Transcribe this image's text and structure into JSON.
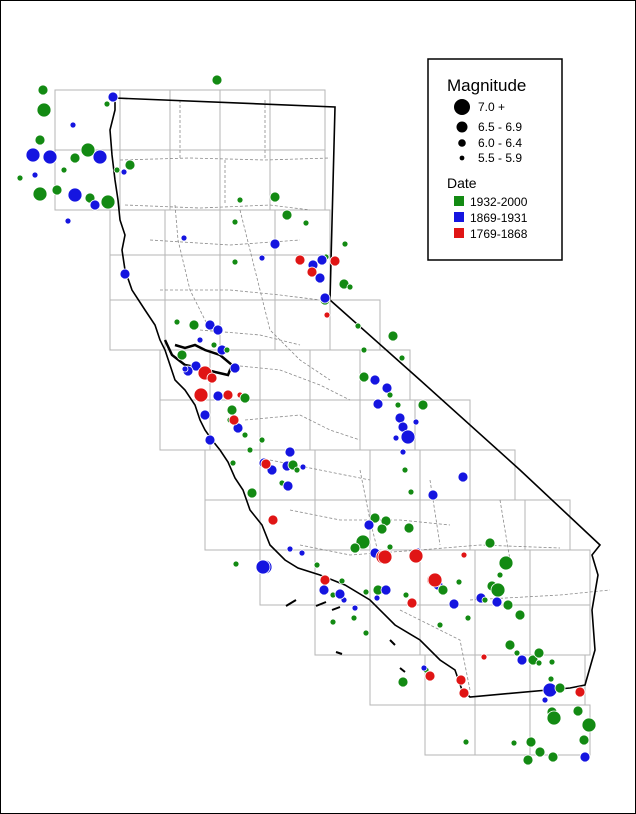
{
  "legend": {
    "magnitude_title": "Magnitude",
    "magnitude_classes": [
      {
        "label": "7.0 +",
        "min": 7.0
      },
      {
        "label": "6.5 - 6.9",
        "min": 6.5
      },
      {
        "label": "6.0 - 6.4",
        "min": 6.0
      },
      {
        "label": "5.5 - 5.9",
        "min": 5.5
      }
    ],
    "date_title": "Date",
    "date_classes": [
      {
        "label": "1932-2000",
        "color": "#138a13"
      },
      {
        "label": "1869-1931",
        "color": "#1515e0"
      },
      {
        "label": "1769-1868",
        "color": "#e01515"
      }
    ]
  }
}
